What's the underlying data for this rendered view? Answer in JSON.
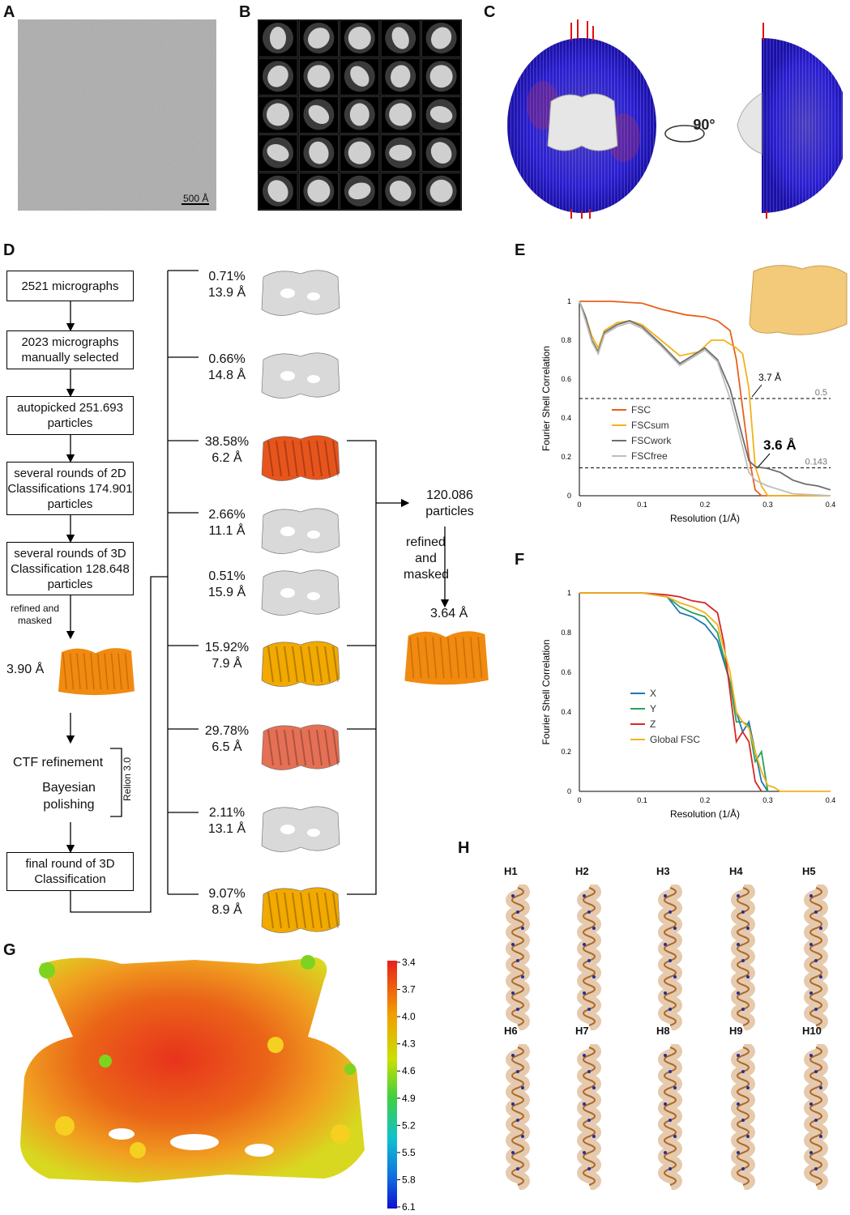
{
  "panels": {
    "A": "A",
    "B": "B",
    "C": "C",
    "D": "D",
    "E": "E",
    "F": "F",
    "G": "G",
    "H": "H"
  },
  "micrograph": {
    "scalebar": "500 Å"
  },
  "euler": {
    "rotation": "90°"
  },
  "flow": {
    "b1": "2521 micrographs",
    "b2": "2023 micrographs manually selected",
    "b3": "autopicked 251.693 particles",
    "b4": "several rounds of 2D Classifications 174.901 particles",
    "b5": "several rounds of 3D Classification 128.648 particles",
    "refined_masked": "refined and masked",
    "res1": "3.90 Å",
    "ctf": "CTF refinement",
    "bayes": "Bayesian polishing",
    "relion": "Relion 3.0",
    "b6": "final round of 3D Classification",
    "particles": "120.086 particles",
    "refined2": "refined and masked",
    "res2": "3.64 Å"
  },
  "classes": [
    {
      "pct": "0.71%",
      "res": "13.9 Å",
      "color": "#d9d9d9"
    },
    {
      "pct": "0.66%",
      "res": "14.8 Å",
      "color": "#d9d9d9"
    },
    {
      "pct": "38.58%",
      "res": "6.2 Å",
      "color": "#e8551c"
    },
    {
      "pct": "2.66%",
      "res": "11.1 Å",
      "color": "#d9d9d9"
    },
    {
      "pct": "0.51%",
      "res": "15.9 Å",
      "color": "#d9d9d9"
    },
    {
      "pct": "15.92%",
      "res": "7.9 Å",
      "color": "#f2a900"
    },
    {
      "pct": "29.78%",
      "res": "6.5 Å",
      "color": "#e57055"
    },
    {
      "pct": "2.11%",
      "res": "13.1 Å",
      "color": "#d9d9d9"
    },
    {
      "pct": "9.07%",
      "res": "8.9 Å",
      "color": "#f2a900"
    }
  ],
  "chart_data": [
    {
      "type": "line",
      "xlabel": "Resolution (1/Å)",
      "ylabel": "Fourier Shell Correlation",
      "xlim": [
        0,
        0.4
      ],
      "ylim": [
        0,
        1
      ],
      "xticks": [
        "0",
        "0.1",
        "0.2",
        "0.3",
        "0.4"
      ],
      "yticks": [
        "0",
        "0.2",
        "0.4",
        "0.6",
        "0.8",
        "1"
      ],
      "hlines": [
        {
          "y": 0.5,
          "label": "0.5"
        },
        {
          "y": 0.143,
          "label": "0.143"
        }
      ],
      "annotations": [
        "3.7 Å",
        "3.6 Å"
      ],
      "series": [
        {
          "name": "FSC",
          "color": "#e8601c",
          "x": [
            0,
            0.05,
            0.1,
            0.13,
            0.17,
            0.2,
            0.22,
            0.24,
            0.25,
            0.26,
            0.27,
            0.28,
            0.29,
            0.3,
            0.4
          ],
          "y": [
            1,
            1,
            0.99,
            0.96,
            0.93,
            0.92,
            0.9,
            0.85,
            0.7,
            0.45,
            0.2,
            0.03,
            0,
            0,
            0
          ]
        },
        {
          "name": "FSCsum",
          "color": "#f2b21a",
          "x": [
            0,
            0.01,
            0.02,
            0.03,
            0.04,
            0.06,
            0.08,
            0.1,
            0.13,
            0.16,
            0.19,
            0.21,
            0.23,
            0.25,
            0.26,
            0.27,
            0.28,
            0.29,
            0.3,
            0.4
          ],
          "y": [
            1,
            0.92,
            0.82,
            0.76,
            0.85,
            0.89,
            0.9,
            0.88,
            0.8,
            0.72,
            0.74,
            0.8,
            0.8,
            0.76,
            0.73,
            0.55,
            0.15,
            0.05,
            0,
            0
          ]
        },
        {
          "name": "FSCwork",
          "color": "#6d6d6d",
          "x": [
            0,
            0.01,
            0.02,
            0.03,
            0.04,
            0.06,
            0.08,
            0.1,
            0.13,
            0.16,
            0.19,
            0.2,
            0.22,
            0.24,
            0.26,
            0.27,
            0.28,
            0.3,
            0.32,
            0.34,
            0.36,
            0.38,
            0.4
          ],
          "y": [
            1,
            0.92,
            0.8,
            0.74,
            0.84,
            0.88,
            0.9,
            0.87,
            0.78,
            0.68,
            0.74,
            0.76,
            0.7,
            0.55,
            0.3,
            0.18,
            0.15,
            0.14,
            0.12,
            0.08,
            0.06,
            0.05,
            0.03
          ]
        },
        {
          "name": "FSCfree",
          "color": "#bdbdbd",
          "x": [
            0,
            0.01,
            0.02,
            0.03,
            0.04,
            0.06,
            0.08,
            0.1,
            0.13,
            0.16,
            0.19,
            0.2,
            0.22,
            0.24,
            0.26,
            0.27,
            0.28,
            0.3,
            0.32,
            0.34,
            0.4
          ],
          "y": [
            1,
            0.9,
            0.79,
            0.73,
            0.83,
            0.87,
            0.89,
            0.86,
            0.77,
            0.67,
            0.73,
            0.75,
            0.69,
            0.5,
            0.25,
            0.12,
            0.08,
            0.05,
            0.03,
            0.01,
            0
          ]
        }
      ]
    },
    {
      "type": "line",
      "xlabel": "Resolution (1/Å)",
      "ylabel": "Fourier Shell Correlation",
      "xlim": [
        0,
        0.4
      ],
      "ylim": [
        0,
        1
      ],
      "xticks": [
        "0",
        "0.1",
        "0.2",
        "0.3",
        "0.4"
      ],
      "yticks": [
        "0",
        "0.2",
        "0.4",
        "0.6",
        "0.8",
        "1"
      ],
      "series": [
        {
          "name": "X",
          "color": "#1f77b4",
          "x": [
            0,
            0.1,
            0.14,
            0.16,
            0.18,
            0.2,
            0.22,
            0.24,
            0.25,
            0.26,
            0.27,
            0.28,
            0.29,
            0.3
          ],
          "y": [
            1,
            1,
            0.98,
            0.9,
            0.88,
            0.84,
            0.76,
            0.55,
            0.4,
            0.3,
            0.35,
            0.2,
            0.05,
            0
          ]
        },
        {
          "name": "Y",
          "color": "#2ca05a",
          "x": [
            0,
            0.1,
            0.14,
            0.16,
            0.18,
            0.2,
            0.22,
            0.24,
            0.25,
            0.26,
            0.27,
            0.28,
            0.29,
            0.3
          ],
          "y": [
            1,
            1,
            0.98,
            0.93,
            0.9,
            0.88,
            0.8,
            0.55,
            0.35,
            0.35,
            0.33,
            0.15,
            0.2,
            0
          ]
        },
        {
          "name": "Z",
          "color": "#d62728",
          "x": [
            0,
            0.1,
            0.14,
            0.16,
            0.18,
            0.2,
            0.22,
            0.23,
            0.24,
            0.25,
            0.26,
            0.27,
            0.28,
            0.29
          ],
          "y": [
            1,
            1,
            0.99,
            0.98,
            0.96,
            0.95,
            0.9,
            0.75,
            0.5,
            0.25,
            0.3,
            0.25,
            0.05,
            0
          ]
        },
        {
          "name": "Global FSC",
          "color": "#f2b21a",
          "x": [
            0,
            0.1,
            0.14,
            0.16,
            0.18,
            0.2,
            0.22,
            0.24,
            0.25,
            0.26,
            0.27,
            0.28,
            0.29,
            0.3,
            0.31,
            0.32,
            0.4
          ],
          "y": [
            1,
            1,
            0.98,
            0.95,
            0.93,
            0.9,
            0.84,
            0.6,
            0.4,
            0.35,
            0.32,
            0.2,
            0.1,
            0.03,
            0.02,
            0,
            0
          ]
        }
      ]
    },
    {
      "type": "heatmap",
      "colorbar_ticks": [
        "3.4",
        "3.7",
        "4.0",
        "4.3",
        "4.6",
        "4.9",
        "5.2",
        "5.5",
        "5.8",
        "6.1"
      ]
    }
  ],
  "helices": [
    "H1",
    "H2",
    "H3",
    "H4",
    "H5",
    "H6",
    "H7",
    "H8",
    "H9",
    "H10"
  ]
}
